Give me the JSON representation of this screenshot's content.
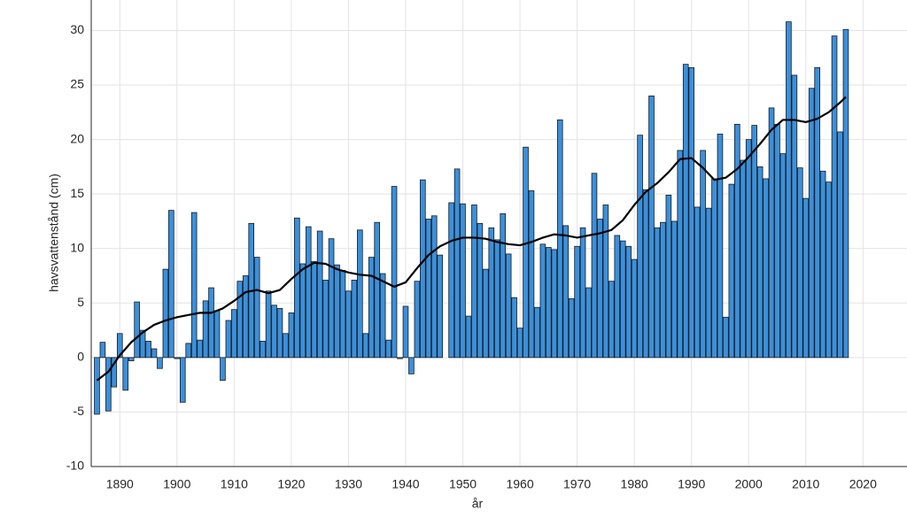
{
  "chart_data": {
    "type": "bar",
    "xlabel": "år",
    "ylabel": "havsvattenstånd (cm)",
    "x": [
      1886,
      1887,
      1888,
      1889,
      1890,
      1891,
      1892,
      1893,
      1894,
      1895,
      1896,
      1897,
      1898,
      1899,
      1900,
      1901,
      1902,
      1903,
      1904,
      1905,
      1906,
      1907,
      1908,
      1909,
      1910,
      1911,
      1912,
      1913,
      1914,
      1915,
      1916,
      1917,
      1918,
      1919,
      1920,
      1921,
      1922,
      1923,
      1924,
      1925,
      1926,
      1927,
      1928,
      1929,
      1930,
      1931,
      1932,
      1933,
      1934,
      1935,
      1936,
      1937,
      1938,
      1939,
      1940,
      1941,
      1942,
      1943,
      1944,
      1945,
      1946,
      1947,
      1948,
      1949,
      1950,
      1951,
      1952,
      1953,
      1954,
      1955,
      1956,
      1957,
      1958,
      1959,
      1960,
      1961,
      1962,
      1963,
      1964,
      1965,
      1966,
      1967,
      1968,
      1969,
      1970,
      1971,
      1972,
      1973,
      1974,
      1975,
      1976,
      1977,
      1978,
      1979,
      1980,
      1981,
      1982,
      1983,
      1984,
      1985,
      1986,
      1987,
      1988,
      1989,
      1990,
      1991,
      1992,
      1993,
      1994,
      1995,
      1996,
      1997,
      1998,
      1999,
      2000,
      2001,
      2002,
      2003,
      2004,
      2005,
      2006,
      2007,
      2008,
      2009,
      2010,
      2011,
      2012,
      2013,
      2014,
      2015,
      2016,
      2017
    ],
    "values": [
      -5.2,
      1.4,
      -4.9,
      -2.7,
      2.2,
      -3.0,
      -0.3,
      5.1,
      2.5,
      1.5,
      0.8,
      -1.0,
      8.1,
      13.5,
      -0.1,
      -4.1,
      1.3,
      13.3,
      1.6,
      5.2,
      6.4,
      4.3,
      -2.1,
      3.4,
      4.4,
      7.0,
      7.5,
      12.3,
      9.2,
      1.5,
      6.1,
      4.8,
      4.5,
      2.2,
      4.1,
      12.8,
      8.6,
      12.0,
      8.8,
      11.6,
      7.1,
      10.9,
      8.5,
      8.0,
      6.1,
      7.1,
      11.7,
      2.2,
      9.2,
      12.4,
      7.7,
      1.6,
      15.7,
      -0.1,
      4.7,
      -1.5,
      7.0,
      16.3,
      12.7,
      13.0,
      9.4,
      null,
      14.2,
      17.3,
      14.1,
      3.8,
      14.0,
      12.3,
      8.1,
      11.9,
      10.8,
      13.2,
      9.5,
      5.5,
      2.7,
      19.3,
      15.3,
      4.6,
      10.4,
      10.1,
      9.9,
      21.8,
      12.1,
      5.4,
      10.2,
      11.9,
      6.4,
      16.9,
      12.7,
      14.0,
      7.0,
      11.2,
      10.7,
      10.2,
      9.0,
      20.4,
      15.4,
      24.0,
      11.9,
      12.4,
      14.9,
      12.5,
      19.0,
      26.9,
      26.6,
      13.8,
      19.0,
      13.7,
      16.4,
      20.5,
      3.7,
      15.9,
      21.4,
      18.1,
      20.0,
      21.3,
      17.5,
      16.4,
      22.9,
      21.4,
      18.7,
      30.8,
      25.9,
      17.4,
      14.6,
      24.7,
      26.6,
      17.1,
      16.1,
      29.5,
      20.7,
      30.1
    ],
    "color": "#3a90dc",
    "line": {
      "color": "#000000",
      "x": [
        1886,
        1888,
        1890,
        1892,
        1894,
        1896,
        1898,
        1900,
        1902,
        1904,
        1906,
        1908,
        1910,
        1912,
        1914,
        1916,
        1918,
        1920,
        1922,
        1924,
        1926,
        1928,
        1930,
        1932,
        1934,
        1936,
        1938,
        1940,
        1942,
        1944,
        1946,
        1948,
        1950,
        1952,
        1954,
        1956,
        1958,
        1960,
        1962,
        1964,
        1966,
        1968,
        1970,
        1972,
        1974,
        1976,
        1978,
        1980,
        1982,
        1984,
        1986,
        1988,
        1990,
        1992,
        1994,
        1996,
        1998,
        2000,
        2002,
        2004,
        2006,
        2008,
        2010,
        2012,
        2014,
        2016,
        2017
      ],
      "values": [
        -2.1,
        -1.3,
        0.2,
        1.4,
        2.3,
        3.0,
        3.4,
        3.7,
        3.9,
        4.1,
        4.1,
        4.5,
        5.2,
        6.0,
        6.2,
        5.9,
        6.2,
        7.2,
        8.1,
        8.7,
        8.6,
        8.1,
        7.8,
        7.6,
        7.5,
        7.0,
        6.5,
        6.9,
        8.2,
        9.4,
        10.2,
        10.7,
        11.0,
        11.0,
        10.9,
        10.6,
        10.4,
        10.3,
        10.6,
        11.0,
        11.3,
        11.2,
        11.0,
        11.2,
        11.4,
        11.7,
        12.6,
        14.0,
        15.2,
        16.0,
        17.0,
        18.2,
        18.3,
        17.4,
        16.3,
        16.5,
        17.3,
        18.4,
        19.6,
        20.9,
        21.8,
        21.8,
        21.6,
        21.9,
        22.5,
        23.4,
        23.9
      ]
    },
    "xlim": [
      1885,
      2027.7
    ],
    "ylim": [
      -10,
      32.8
    ],
    "xticks": [
      1890,
      1900,
      1910,
      1920,
      1930,
      1940,
      1950,
      1960,
      1970,
      1980,
      1990,
      2000,
      2010,
      2020
    ],
    "yticks": [
      -10,
      -5,
      0,
      5,
      10,
      15,
      20,
      25,
      30
    ],
    "grid": true
  }
}
